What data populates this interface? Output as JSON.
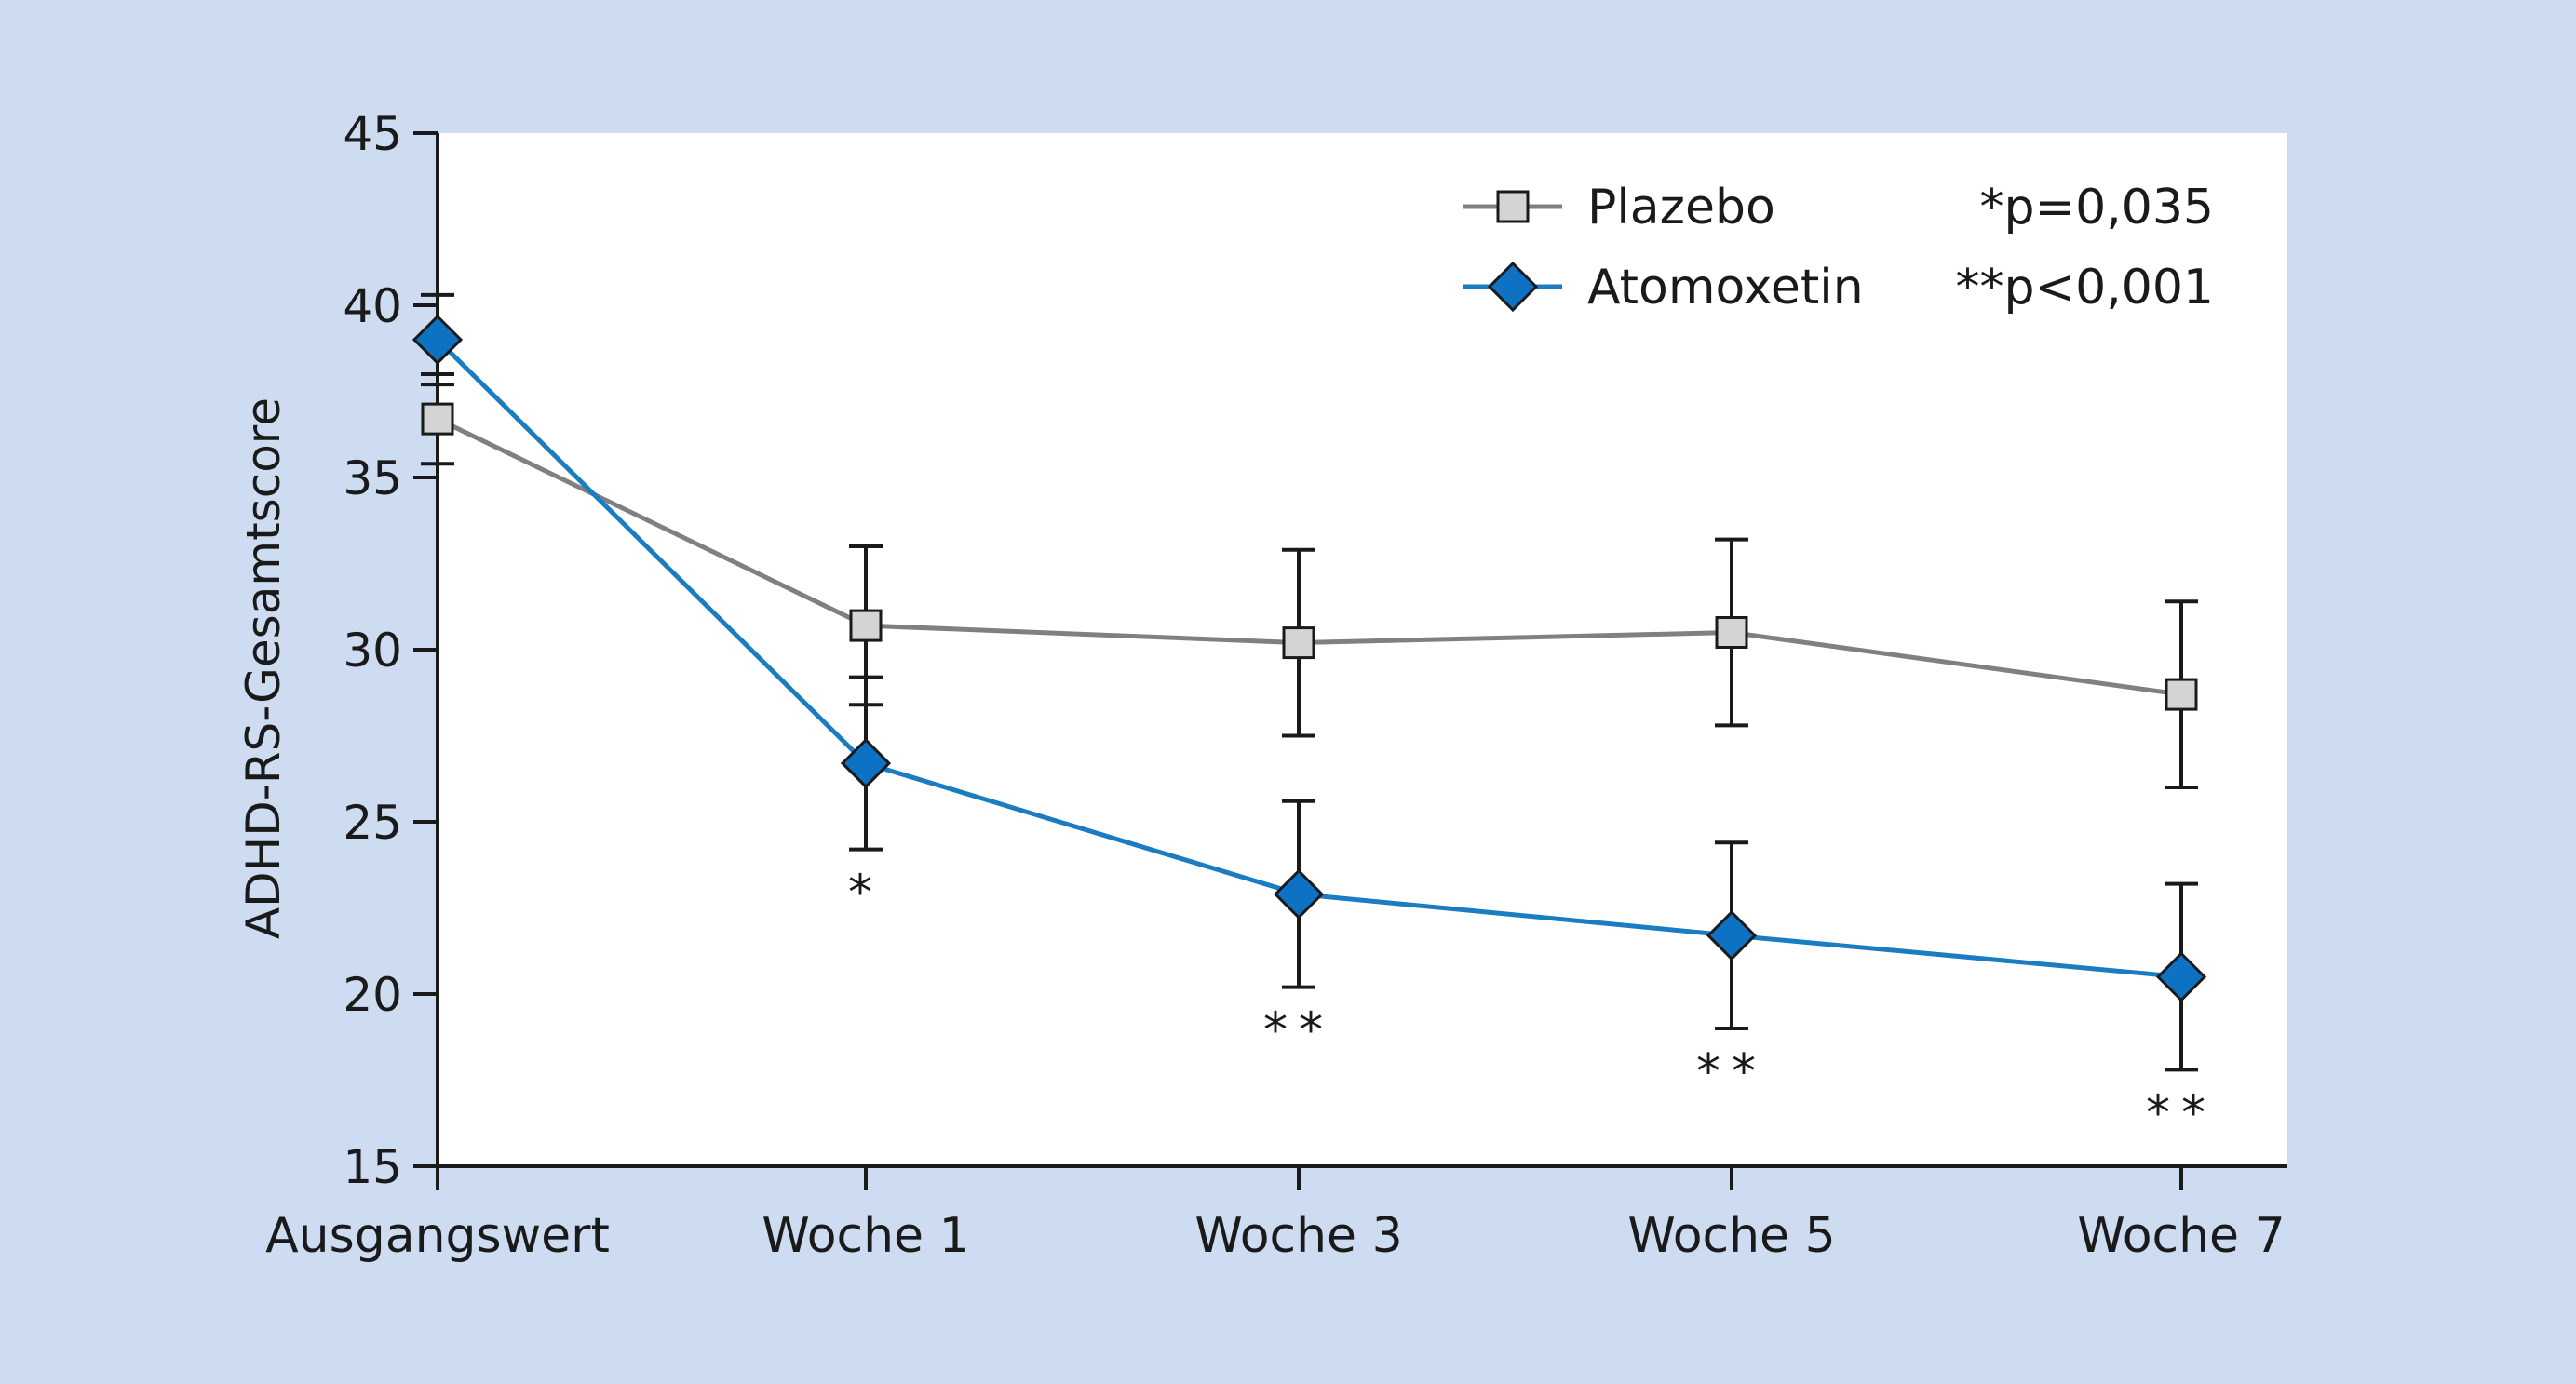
{
  "chart_data": {
    "type": "line",
    "ylabel": "ADHD-RS-Gesamtscore",
    "xlabel": "",
    "categories": [
      "Ausgangswert",
      "Woche 1",
      "Woche 3",
      "Woche 5",
      "Woche 7"
    ],
    "ylim": [
      15,
      45
    ],
    "yticks": [
      "15",
      "20",
      "25",
      "30",
      "35",
      "40",
      "45"
    ],
    "grid": false,
    "legend_position": "top-right",
    "series": [
      {
        "name": "Plazebo",
        "marker": "square",
        "color": "#808080",
        "marker_fill": "#d4d4d4",
        "values": [
          36.7,
          30.7,
          30.2,
          30.5,
          28.7
        ],
        "error": [
          1.3,
          2.3,
          2.7,
          2.7,
          2.7
        ]
      },
      {
        "name": "Atomoxetin",
        "marker": "diamond",
        "color": "#1a7cc1",
        "marker_fill": "#0d72c4",
        "values": [
          39.0,
          26.7,
          22.9,
          21.7,
          20.5
        ],
        "error": [
          1.3,
          2.5,
          2.7,
          2.7,
          2.7
        ]
      }
    ],
    "significance_marks": [
      "",
      "*",
      "**",
      "**",
      "**"
    ],
    "legend_notes": [
      "*p=0,035",
      "**p<0,001"
    ]
  }
}
